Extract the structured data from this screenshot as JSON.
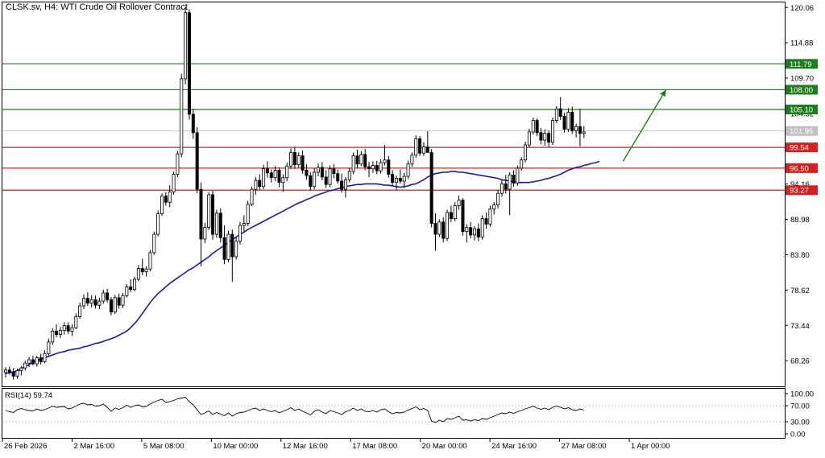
{
  "header": {
    "title": "CLSK.sv, H4:  WTI Crude Oil Rollover Contract"
  },
  "indicator": {
    "label": "RSI(14) 59.74",
    "ticks": [
      "100.00",
      "70.00",
      "30.00",
      "0.00"
    ],
    "levels": [
      100,
      70,
      30,
      0
    ]
  },
  "colors": {
    "bull": "#ffffff",
    "bear": "#000000",
    "ma": "#1a1aa8",
    "resistance": "#1e7d1e",
    "support": "#d42020",
    "current": "#c0c0c0",
    "arrow": "#1e7d1e"
  },
  "chart_data": {
    "type": "candlestick",
    "y_ticks": [
      "120.06",
      "114.88",
      "109.70",
      "104.52",
      "99.34",
      "94.16",
      "88.98",
      "83.80",
      "78.62",
      "73.44",
      "68.26"
    ],
    "y_tick_values": [
      120.06,
      114.88,
      109.7,
      104.52,
      99.34,
      94.16,
      88.98,
      83.8,
      78.62,
      73.44,
      68.26
    ],
    "x_ticks": [
      "26 Feb 2026",
      "2 Mar 16:00",
      "5 Mar 08:00",
      "10 Mar 00:00",
      "12 Mar 16:00",
      "17 Mar 08:00",
      "20 Mar 00:00",
      "24 Mar 16:00",
      "27 Mar 08:00",
      "1 Apr 00:00"
    ],
    "ylim": [
      64.5,
      120.8
    ],
    "levels": [
      {
        "value": 111.79,
        "label": "111.79",
        "kind": "resistance"
      },
      {
        "value": 108.0,
        "label": "108.00",
        "kind": "resistance"
      },
      {
        "value": 105.1,
        "label": "105.10",
        "kind": "resistance"
      },
      {
        "value": 101.95,
        "label": "101.95",
        "kind": "current"
      },
      {
        "value": 99.54,
        "label": "99.54",
        "kind": "support"
      },
      {
        "value": 96.5,
        "label": "96.50",
        "kind": "support"
      },
      {
        "value": 93.27,
        "label": "93.27",
        "kind": "support"
      }
    ],
    "arrow": {
      "from": [
        158,
        97.5
      ],
      "to": [
        169,
        108.0
      ]
    },
    "ohlc": [
      [
        66.5,
        67.3,
        65.8,
        66.9
      ],
      [
        66.9,
        67.4,
        66.2,
        66.6
      ],
      [
        66.6,
        67.2,
        65.5,
        66.0
      ],
      [
        66.0,
        67.1,
        65.6,
        66.8
      ],
      [
        66.8,
        67.5,
        66.1,
        67.2
      ],
      [
        67.2,
        68.3,
        66.8,
        67.9
      ],
      [
        67.9,
        68.8,
        67.3,
        68.4
      ],
      [
        68.4,
        69.0,
        67.6,
        67.8
      ],
      [
        67.8,
        69.0,
        67.4,
        68.7
      ],
      [
        68.7,
        69.3,
        67.7,
        68.1
      ],
      [
        68.1,
        69.8,
        67.9,
        69.3
      ],
      [
        69.3,
        71.5,
        69.0,
        71.0
      ],
      [
        71.0,
        73.0,
        70.6,
        72.6
      ],
      [
        72.6,
        73.6,
        71.7,
        72.1
      ],
      [
        72.1,
        73.2,
        71.6,
        72.7
      ],
      [
        72.7,
        73.9,
        72.1,
        73.4
      ],
      [
        73.4,
        73.9,
        72.2,
        72.6
      ],
      [
        72.6,
        73.6,
        71.9,
        73.1
      ],
      [
        73.1,
        75.2,
        72.9,
        74.7
      ],
      [
        74.7,
        76.8,
        74.4,
        76.3
      ],
      [
        76.3,
        78.0,
        75.8,
        77.4
      ],
      [
        77.4,
        78.3,
        76.3,
        76.7
      ],
      [
        76.7,
        77.9,
        76.1,
        77.2
      ],
      [
        77.2,
        77.8,
        75.9,
        76.4
      ],
      [
        76.4,
        77.5,
        75.8,
        77.0
      ],
      [
        77.0,
        78.7,
        76.6,
        78.2
      ],
      [
        78.2,
        78.8,
        76.8,
        77.2
      ],
      [
        77.2,
        77.6,
        74.9,
        75.4
      ],
      [
        75.4,
        77.9,
        75.1,
        77.5
      ],
      [
        77.5,
        78.1,
        75.9,
        76.4
      ],
      [
        76.4,
        78.2,
        76.0,
        77.8
      ],
      [
        77.8,
        79.5,
        77.5,
        79.1
      ],
      [
        79.1,
        80.2,
        78.3,
        78.7
      ],
      [
        78.7,
        80.6,
        78.4,
        80.2
      ],
      [
        80.2,
        82.3,
        79.9,
        81.8
      ],
      [
        81.8,
        83.2,
        80.8,
        81.3
      ],
      [
        81.3,
        82.1,
        80.6,
        81.7
      ],
      [
        81.7,
        84.5,
        81.4,
        84.1
      ],
      [
        84.1,
        87.2,
        83.8,
        86.8
      ],
      [
        86.8,
        90.3,
        86.5,
        89.8
      ],
      [
        89.8,
        92.8,
        89.5,
        92.4
      ],
      [
        92.4,
        93.0,
        91.0,
        91.5
      ],
      [
        91.5,
        94.0,
        90.8,
        93.0
      ],
      [
        93.0,
        96.0,
        92.6,
        95.6
      ],
      [
        95.6,
        99.0,
        95.2,
        98.6
      ],
      [
        98.6,
        110.3,
        98.1,
        109.6
      ],
      [
        109.6,
        120.1,
        108.8,
        119.3
      ],
      [
        119.3,
        119.8,
        103.6,
        104.4
      ],
      [
        104.4,
        105.2,
        100.8,
        101.7
      ],
      [
        101.7,
        102.5,
        92.8,
        93.4
      ],
      [
        93.4,
        94.4,
        82.1,
        86.1
      ],
      [
        86.1,
        88.5,
        85.5,
        87.8
      ],
      [
        87.8,
        93.0,
        87.4,
        92.6
      ],
      [
        92.6,
        93.2,
        86.0,
        86.8
      ],
      [
        86.8,
        90.4,
        86.3,
        89.9
      ],
      [
        89.9,
        90.6,
        85.6,
        86.3
      ],
      [
        86.3,
        88.1,
        82.4,
        83.1
      ],
      [
        83.1,
        87.3,
        82.7,
        86.8
      ],
      [
        86.8,
        87.5,
        79.8,
        83.5
      ],
      [
        83.5,
        86.4,
        83.1,
        85.8
      ],
      [
        85.8,
        88.6,
        85.3,
        88.1
      ],
      [
        88.1,
        89.6,
        87.2,
        88.4
      ],
      [
        88.4,
        91.7,
        88.0,
        91.2
      ],
      [
        91.2,
        93.8,
        90.9,
        93.4
      ],
      [
        93.4,
        95.2,
        92.6,
        94.7
      ],
      [
        94.7,
        95.6,
        93.3,
        93.8
      ],
      [
        93.8,
        97.0,
        93.4,
        96.4
      ],
      [
        96.4,
        97.5,
        95.1,
        95.8
      ],
      [
        95.8,
        96.3,
        94.4,
        95.1
      ],
      [
        95.1,
        96.8,
        94.6,
        96.2
      ],
      [
        96.2,
        96.6,
        93.7,
        94.4
      ],
      [
        94.4,
        95.6,
        93.0,
        95.1
      ],
      [
        95.1,
        97.3,
        94.6,
        96.8
      ],
      [
        96.8,
        99.4,
        96.4,
        98.8
      ],
      [
        98.8,
        99.6,
        96.4,
        97.0
      ],
      [
        97.0,
        98.8,
        96.6,
        98.3
      ],
      [
        98.3,
        99.1,
        95.7,
        96.2
      ],
      [
        96.2,
        97.1,
        94.8,
        95.4
      ],
      [
        95.4,
        95.9,
        93.2,
        93.8
      ],
      [
        93.8,
        96.5,
        93.4,
        95.9
      ],
      [
        95.9,
        97.2,
        95.3,
        96.6
      ],
      [
        96.6,
        97.4,
        94.7,
        95.2
      ],
      [
        95.2,
        96.2,
        93.6,
        94.1
      ],
      [
        94.1,
        96.9,
        93.7,
        96.4
      ],
      [
        96.4,
        97.1,
        95.0,
        95.7
      ],
      [
        95.7,
        96.3,
        94.2,
        94.6
      ],
      [
        94.6,
        95.7,
        92.9,
        93.4
      ],
      [
        93.4,
        95.2,
        92.2,
        94.8
      ],
      [
        94.8,
        96.5,
        94.4,
        96.0
      ],
      [
        96.0,
        98.8,
        95.6,
        98.3
      ],
      [
        98.3,
        99.2,
        96.5,
        97.1
      ],
      [
        97.1,
        99.0,
        96.8,
        98.5
      ],
      [
        98.5,
        99.3,
        96.2,
        96.7
      ],
      [
        96.7,
        97.4,
        95.2,
        96.4
      ],
      [
        96.4,
        97.5,
        95.8,
        96.9
      ],
      [
        96.9,
        97.6,
        95.6,
        96.1
      ],
      [
        96.1,
        97.8,
        95.7,
        97.3
      ],
      [
        97.3,
        99.9,
        96.9,
        97.7
      ],
      [
        97.7,
        98.3,
        95.1,
        95.6
      ],
      [
        95.6,
        96.2,
        93.9,
        94.4
      ],
      [
        94.4,
        95.4,
        93.3,
        95.0
      ],
      [
        95.0,
        96.3,
        94.2,
        94.6
      ],
      [
        94.6,
        95.8,
        93.6,
        95.3
      ],
      [
        95.3,
        97.6,
        94.9,
        97.1
      ],
      [
        97.1,
        98.8,
        96.7,
        98.4
      ],
      [
        98.4,
        101.3,
        98.0,
        100.8
      ],
      [
        100.8,
        101.2,
        98.3,
        98.7
      ],
      [
        98.7,
        100.3,
        98.3,
        99.6
      ],
      [
        99.6,
        101.9,
        99.2,
        98.8
      ],
      [
        98.8,
        99.3,
        87.8,
        88.4
      ],
      [
        88.4,
        89.9,
        84.4,
        86.8
      ],
      [
        86.8,
        89.0,
        86.4,
        88.6
      ],
      [
        88.6,
        89.3,
        85.6,
        86.2
      ],
      [
        86.2,
        90.4,
        85.8,
        90.0
      ],
      [
        90.0,
        91.0,
        88.6,
        89.1
      ],
      [
        89.1,
        91.5,
        88.7,
        91.0
      ],
      [
        91.0,
        92.5,
        90.4,
        91.8
      ],
      [
        91.8,
        92.1,
        86.6,
        87.2
      ],
      [
        87.2,
        88.3,
        85.6,
        87.8
      ],
      [
        87.8,
        88.6,
        86.2,
        86.7
      ],
      [
        86.7,
        88.0,
        85.9,
        87.6
      ],
      [
        87.6,
        88.4,
        85.8,
        86.4
      ],
      [
        86.4,
        89.6,
        86.0,
        89.1
      ],
      [
        89.1,
        90.0,
        87.6,
        88.3
      ],
      [
        88.3,
        91.0,
        87.9,
        90.5
      ],
      [
        90.5,
        91.5,
        89.7,
        91.1
      ],
      [
        91.1,
        93.3,
        90.6,
        92.8
      ],
      [
        92.8,
        94.7,
        92.3,
        94.2
      ],
      [
        94.2,
        95.5,
        92.8,
        93.4
      ],
      [
        93.4,
        95.9,
        89.6,
        95.5
      ],
      [
        95.5,
        96.2,
        93.8,
        94.3
      ],
      [
        94.3,
        96.9,
        93.9,
        96.5
      ],
      [
        96.5,
        98.1,
        96.1,
        97.7
      ],
      [
        97.7,
        100.4,
        97.3,
        99.9
      ],
      [
        99.9,
        102.3,
        99.5,
        101.8
      ],
      [
        101.8,
        103.9,
        101.4,
        103.5
      ],
      [
        103.5,
        103.8,
        101.2,
        101.7
      ],
      [
        101.7,
        102.4,
        100.0,
        100.6
      ],
      [
        100.6,
        102.2,
        99.8,
        101.6
      ],
      [
        101.6,
        102.0,
        99.6,
        100.3
      ],
      [
        100.3,
        103.9,
        99.9,
        103.5
      ],
      [
        103.5,
        105.6,
        103.1,
        105.2
      ],
      [
        105.2,
        106.9,
        103.6,
        104.1
      ],
      [
        104.1,
        104.6,
        101.7,
        102.2
      ],
      [
        102.2,
        105.3,
        101.8,
        104.7
      ],
      [
        104.7,
        105.5,
        101.5,
        102.0
      ],
      [
        102.0,
        103.0,
        101.0,
        102.6
      ],
      [
        102.6,
        105.2,
        99.7,
        101.6
      ],
      [
        101.6,
        102.7,
        100.9,
        101.8
      ]
    ],
    "ma": [
      66.4,
      66.5,
      66.6,
      66.8,
      67.1,
      67.4,
      67.7,
      68.0,
      68.3,
      68.5,
      68.7,
      68.9,
      69.1,
      69.3,
      69.5,
      69.6,
      69.8,
      69.9,
      70.0,
      70.1,
      70.3,
      70.4,
      70.6,
      70.8,
      70.9,
      71.1,
      71.3,
      71.5,
      71.7,
      72.0,
      72.3,
      72.6,
      73.1,
      73.7,
      74.4,
      75.2,
      76.0,
      76.8,
      77.5,
      78.1,
      78.6,
      79.1,
      79.6,
      80.0,
      80.4,
      80.8,
      81.2,
      81.6,
      81.9,
      82.3,
      82.7,
      83.1,
      83.5,
      84.0,
      84.4,
      84.8,
      85.2,
      85.6,
      86.0,
      86.4,
      86.8,
      87.1,
      87.5,
      87.8,
      88.1,
      88.4,
      88.7,
      89.0,
      89.3,
      89.6,
      89.9,
      90.2,
      90.5,
      90.8,
      91.1,
      91.4,
      91.6,
      91.9,
      92.1,
      92.4,
      92.6,
      92.8,
      93.0,
      93.2,
      93.3,
      93.5,
      93.6,
      93.8,
      93.9,
      94.0,
      94.1,
      94.1,
      94.2,
      94.2,
      94.2,
      94.2,
      94.1,
      94.0,
      94.0,
      93.9,
      93.8,
      93.7,
      93.8,
      93.9,
      94.1,
      94.2,
      94.5,
      94.8,
      95.2,
      95.5,
      95.7,
      95.8,
      95.9,
      95.9,
      96.0,
      96.0,
      95.9,
      95.9,
      95.8,
      95.7,
      95.6,
      95.5,
      95.4,
      95.3,
      95.2,
      95.1,
      95.0,
      94.8,
      94.7,
      94.6,
      94.5,
      94.4,
      94.4,
      94.4,
      94.4,
      94.5,
      94.6,
      94.7,
      94.9,
      95.0,
      95.2,
      95.4,
      95.6,
      95.9,
      96.2,
      96.4,
      96.6,
      96.7,
      96.9,
      97.0,
      97.2,
      97.3,
      97.5
    ],
    "rsi": [
      58,
      55,
      53,
      60,
      63,
      60,
      58,
      57,
      62,
      58,
      60,
      64,
      69,
      66,
      67,
      68,
      62,
      64,
      69,
      74,
      76,
      72,
      73,
      69,
      70,
      74,
      66,
      56,
      64,
      61,
      65,
      71,
      66,
      70,
      72,
      67,
      68,
      74,
      79,
      83,
      86,
      78,
      80,
      83,
      87,
      89,
      91,
      80,
      72,
      60,
      48,
      52,
      57,
      48,
      53,
      49,
      45,
      52,
      44,
      50,
      53,
      54,
      58,
      62,
      64,
      58,
      62,
      58,
      55,
      58,
      52,
      56,
      60,
      65,
      58,
      62,
      56,
      52,
      47,
      56,
      60,
      54,
      50,
      58,
      55,
      52,
      48,
      55,
      58,
      64,
      58,
      62,
      56,
      55,
      58,
      54,
      60,
      62,
      55,
      50,
      53,
      52,
      54,
      59,
      63,
      67,
      60,
      63,
      58,
      32,
      28,
      34,
      30,
      38,
      36,
      40,
      44,
      34,
      35,
      32,
      35,
      33,
      38,
      36,
      40,
      44,
      48,
      52,
      50,
      54,
      51,
      55,
      58,
      62,
      65,
      69,
      64,
      61,
      64,
      60,
      66,
      69,
      66,
      62,
      65,
      60,
      58,
      62,
      59
    ]
  }
}
